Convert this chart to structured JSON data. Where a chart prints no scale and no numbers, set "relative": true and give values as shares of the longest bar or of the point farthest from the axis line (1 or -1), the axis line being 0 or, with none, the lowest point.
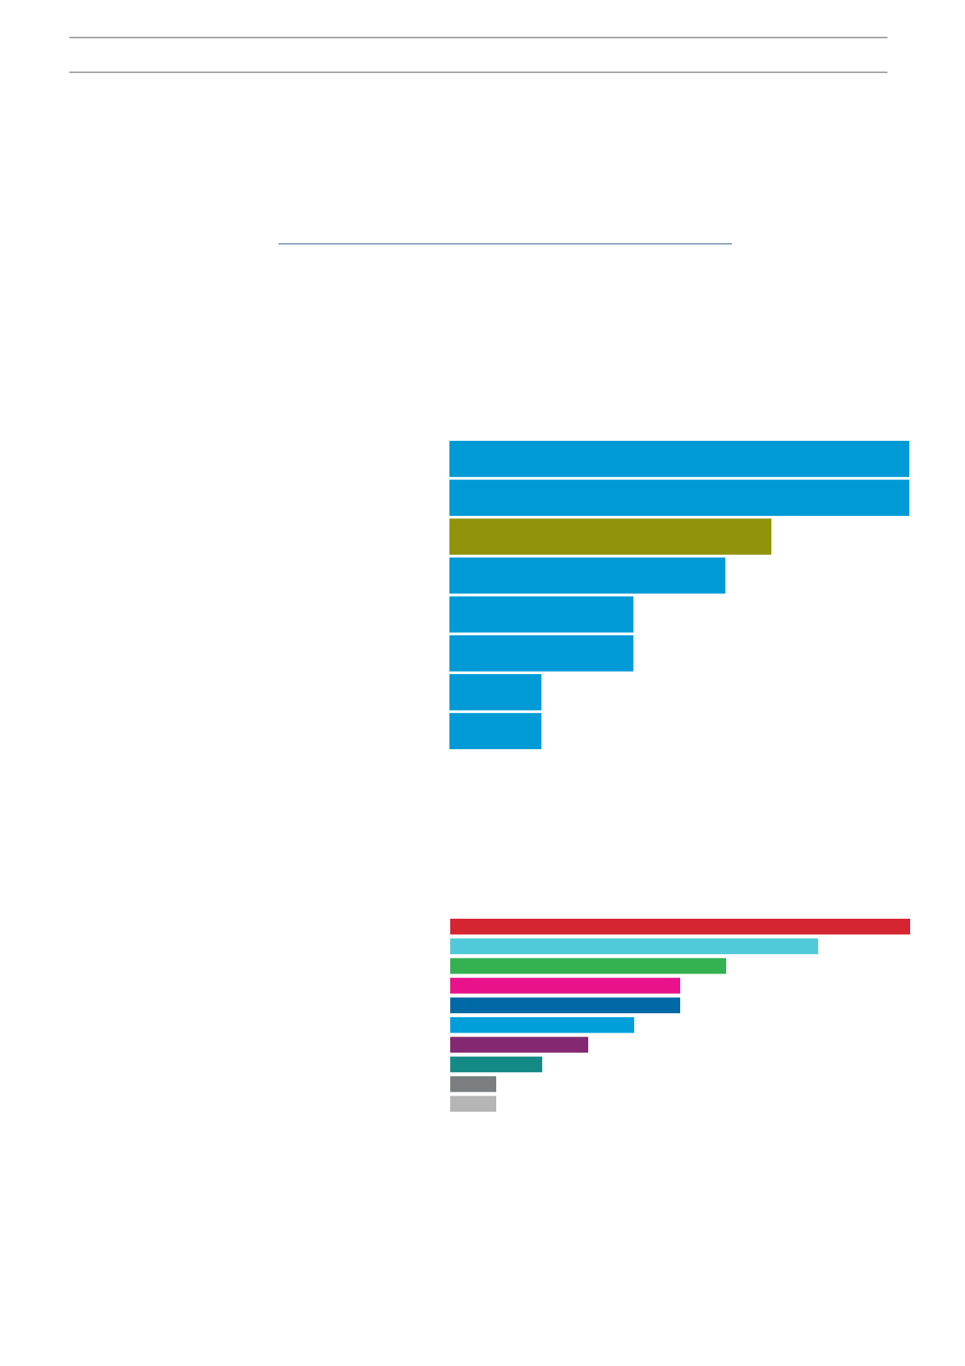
{
  "chart_data": [
    {
      "type": "bar",
      "orientation": "horizontal",
      "relative": true,
      "categories": [
        null,
        null,
        null,
        null,
        null,
        null,
        null,
        null
      ],
      "values": [
        1,
        1,
        0.7,
        0.6,
        0.4,
        0.4,
        0.2,
        0.2
      ],
      "colors": [
        "#009bd6",
        "#009bd6",
        "#92930c",
        "#009bd6",
        "#009bd6",
        "#009bd6",
        "#009bd6",
        "#009bd6"
      ]
    },
    {
      "type": "bar",
      "orientation": "horizontal",
      "relative": true,
      "categories": [
        null,
        null,
        null,
        null,
        null,
        null,
        null,
        null,
        null,
        null
      ],
      "values": [
        1,
        0.8,
        0.6,
        0.5,
        0.5,
        0.4,
        0.3,
        0.2,
        0.1,
        0.1
      ],
      "colors": [
        "#d42530",
        "#50cad8",
        "#34b252",
        "#ea128a",
        "#0068a4",
        "#009fda",
        "#842872",
        "#138a86",
        "#7b7e80",
        "#b5b5b6"
      ]
    }
  ]
}
